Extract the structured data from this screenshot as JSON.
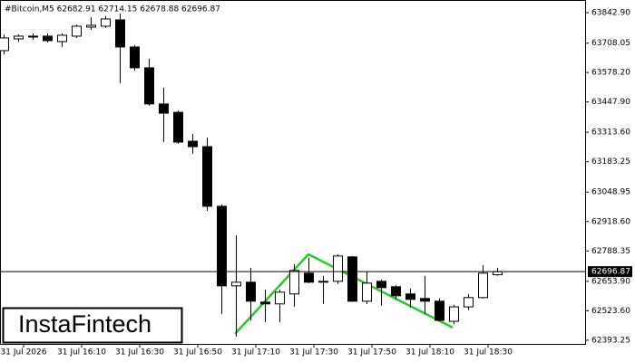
{
  "chart_data": {
    "type": "candlestick",
    "header": "#Bitcoin,M5  62682.91 62714.15 62678.88 62696.87",
    "categories": [
      null,
      "31 Jul 2026",
      null,
      null,
      null,
      "31 Jul 16:10",
      null,
      null,
      null,
      "31 Jul 16:30",
      null,
      null,
      null,
      "31 Jul 16:50",
      null,
      null,
      null,
      "31 Jul 17:10",
      null,
      null,
      null,
      "31 Jul 17:30",
      null,
      null,
      null,
      "31 Jul 17:50",
      null,
      null,
      null,
      "31 Jul 18:10",
      null,
      null,
      null,
      "31 Jul 18:30",
      null
    ],
    "open": [
      63675,
      63727,
      63735,
      63739,
      63715,
      63739,
      63779,
      63783,
      63811,
      63691,
      63599,
      63439,
      63402,
      63274,
      63250,
      62986,
      62634,
      62650,
      62562,
      62554,
      62598,
      62690,
      62654,
      62654,
      62762,
      62566,
      62654,
      62630,
      62598,
      62578,
      62566,
      62477,
      62541,
      62582,
      62682.91
    ],
    "high": [
      63747,
      63747,
      63751,
      63751,
      63751,
      63791,
      63823,
      63827,
      63839,
      63699,
      63639,
      63511,
      63410,
      63306,
      63290,
      62994,
      62858,
      62714,
      62618,
      62618,
      62730,
      62758,
      62678,
      62774,
      62766,
      62698,
      62662,
      62638,
      62622,
      62678,
      62578,
      62550,
      62598,
      62726,
      62714.15
    ],
    "low": [
      63659,
      63715,
      63723,
      63711,
      63691,
      63731,
      63767,
      63775,
      63531,
      63587,
      63431,
      63270,
      63262,
      63218,
      62966,
      62509,
      62409,
      62481,
      62473,
      62473,
      62541,
      62646,
      62554,
      62642,
      62562,
      62554,
      62546,
      62574,
      62538,
      62509,
      62477,
      62465,
      62526,
      62578,
      62678.88
    ],
    "close": [
      63731,
      63739,
      63739,
      63719,
      63743,
      63783,
      63787,
      63815,
      63691,
      63599,
      63439,
      63398,
      63270,
      63250,
      62986,
      62634,
      62650,
      62566,
      62554,
      62606,
      62702,
      62650,
      62654,
      62766,
      62566,
      62646,
      62626,
      62590,
      62574,
      62566,
      62481,
      62541,
      62582,
      62690,
      62696.87
    ],
    "ylim": [
      62377,
      63899
    ],
    "yticks": [
      {
        "value": 63842.9,
        "label": "63842.90"
      },
      63708.05,
      {
        "value": 63578.2,
        "label": "63578.20"
      },
      {
        "value": 63447.9,
        "label": "63447.90"
      },
      {
        "value": 63313.6,
        "label": "63313.60"
      },
      63183.25,
      63048.95,
      {
        "value": 62918.6,
        "label": "62918.60"
      },
      62788.35,
      {
        "value": 62653.9,
        "label": "62653.90"
      },
      {
        "value": 62523.6,
        "label": "62523.60"
      },
      62393.25
    ],
    "current_price": 62696.87,
    "bull_color": "#ffffff",
    "bear_color": "#000000"
  },
  "logo": "InstaFintech"
}
